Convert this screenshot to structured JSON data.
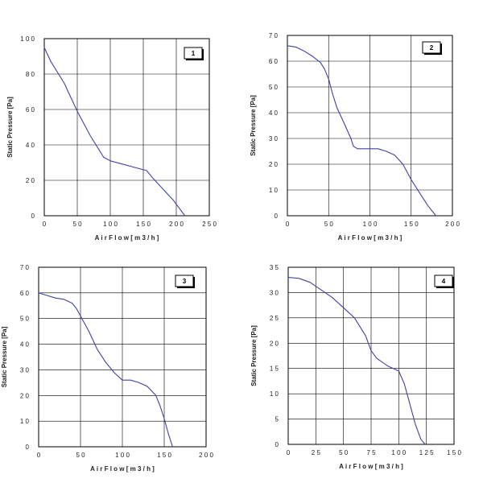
{
  "colors": {
    "line": "#4040a8",
    "grid": "#000000",
    "frame": "#000000"
  },
  "chart_data": [
    {
      "type": "line",
      "badge": "1",
      "xlabel": "A i r  F l o w   [ m 3 / h ]",
      "ylabel": "Static Pressure [Pa]",
      "xlim": [
        0,
        250
      ],
      "ylim": [
        0,
        100
      ],
      "xtick_labels": [
        "0",
        "5 0",
        "1 0 0",
        "1 5 0",
        "2 0 0",
        "2 5 0"
      ],
      "ytick_labels": [
        "0",
        "2 0",
        "4 0",
        "6 0",
        "8 0",
        "1 0 0"
      ],
      "x_gridlines": [
        50,
        100,
        150,
        200
      ],
      "y_gridlines": [
        20,
        40,
        60,
        80
      ],
      "series": [
        {
          "x": [
            0,
            10,
            20,
            30,
            40,
            50,
            60,
            70,
            80,
            90,
            100,
            120,
            140,
            155,
            165,
            180,
            195,
            205,
            213
          ],
          "y": [
            95,
            87,
            81,
            75,
            67,
            59,
            52,
            45,
            39,
            33,
            31,
            29,
            27,
            25.5,
            21,
            15,
            9,
            4,
            0
          ]
        }
      ]
    },
    {
      "type": "line",
      "badge": "2",
      "xlabel": "A i r  F l o w   [ m 3 / h ]",
      "ylabel": "Static Pressure [Pa]",
      "xlim": [
        0,
        200
      ],
      "ylim": [
        0,
        70
      ],
      "xtick_labels": [
        "0",
        "5 0",
        "1 0 0",
        "1 5 0",
        "2 0 0"
      ],
      "ytick_labels": [
        "0",
        "1 0",
        "2 0",
        "3 0",
        "4 0",
        "5 0",
        "6 0",
        "7 0"
      ],
      "x_gridlines": [
        50,
        100,
        150
      ],
      "y_gridlines": [
        10,
        20,
        30,
        40,
        50,
        60
      ],
      "series": [
        {
          "x": [
            0,
            10,
            20,
            30,
            40,
            45,
            50,
            55,
            60,
            70,
            77,
            80,
            85,
            100,
            110,
            120,
            130,
            140,
            150,
            160,
            170,
            180
          ],
          "y": [
            66,
            65.5,
            64,
            62,
            59.5,
            57,
            53,
            47,
            42,
            35,
            30,
            27,
            26,
            26,
            26,
            25,
            23.5,
            20,
            14,
            9,
            4,
            0
          ]
        }
      ]
    },
    {
      "type": "line",
      "badge": "3",
      "xlabel": "A i r  F l o w   [ m 3 / h ]",
      "ylabel": "Static Pressure [Pa]",
      "xlim": [
        0,
        200
      ],
      "ylim": [
        0,
        70
      ],
      "xtick_labels": [
        "0",
        "5 0",
        "1 0 0",
        "1 5 0",
        "2 0 0"
      ],
      "ytick_labels": [
        "0",
        "1 0",
        "2 0",
        "3 0",
        "4 0",
        "5 0",
        "6 0",
        "7 0"
      ],
      "x_gridlines": [
        50,
        100,
        150
      ],
      "y_gridlines": [
        10,
        20,
        30,
        40,
        50,
        60
      ],
      "series": [
        {
          "x": [
            0,
            10,
            20,
            30,
            40,
            45,
            50,
            60,
            70,
            80,
            90,
            100,
            110,
            120,
            130,
            140,
            145,
            150,
            155,
            160
          ],
          "y": [
            60,
            59,
            58,
            57.5,
            56,
            54,
            51,
            45,
            38,
            33,
            29,
            26,
            26,
            25,
            23.5,
            20,
            16,
            11,
            5,
            0
          ]
        }
      ]
    },
    {
      "type": "line",
      "badge": "4",
      "xlabel": "A i r  F l o w   [ m 3 / h ]",
      "ylabel": "Static Pressure [Pa]",
      "xlim": [
        0,
        150
      ],
      "ylim": [
        0,
        35
      ],
      "xtick_labels": [
        "0",
        "2 5",
        "5 0",
        "7 5",
        "1 0 0",
        "1 2 5",
        "1 5 0"
      ],
      "ytick_labels": [
        "0",
        "5",
        "1 0",
        "1 5",
        "2 0",
        "2 5",
        "3 0",
        "3 5"
      ],
      "x_gridlines": [
        25,
        50,
        75,
        100,
        125
      ],
      "y_gridlines": [
        5,
        10,
        15,
        20,
        25,
        30
      ],
      "series": [
        {
          "x": [
            0,
            10,
            20,
            30,
            40,
            50,
            60,
            70,
            75,
            80,
            90,
            100,
            105,
            110,
            115,
            120,
            124
          ],
          "y": [
            33,
            32.8,
            32,
            30.5,
            29,
            27,
            25,
            21.5,
            18.5,
            17,
            15.5,
            14.5,
            12,
            8,
            4,
            1,
            0
          ]
        }
      ]
    }
  ]
}
